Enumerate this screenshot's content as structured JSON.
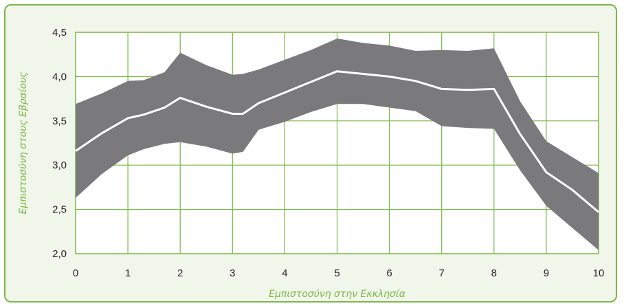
{
  "chart_data": {
    "type": "area",
    "xlabel": "Εμπιστοσύνη στην Εκκλησία",
    "ylabel": "Εμπιστοσύνη στους Εβραίους",
    "xlim": [
      0,
      10
    ],
    "ylim": [
      2.0,
      4.5
    ],
    "x_ticks": [
      "0",
      "1",
      "2",
      "3",
      "4",
      "5",
      "6",
      "7",
      "8",
      "9",
      "10"
    ],
    "y_ticks": [
      "2,0",
      "2,5",
      "3,0",
      "3,5",
      "4,0",
      "4,5"
    ],
    "grid": true,
    "colors": {
      "band": "#7a7a7c",
      "line": "#ffffff",
      "grid": "#7ab648",
      "frame_bg": "#f1f6ea"
    },
    "series": [
      {
        "x": [
          0,
          0.5,
          1,
          1.3,
          1.7,
          2,
          2.5,
          3,
          3.2,
          3.5,
          4,
          4.5,
          5,
          5.5,
          6,
          6.5,
          7,
          7.5,
          8,
          8.5,
          9,
          9.5,
          10
        ],
        "mean": [
          3.16,
          3.36,
          3.53,
          3.57,
          3.65,
          3.76,
          3.66,
          3.58,
          3.58,
          3.7,
          3.82,
          3.94,
          4.06,
          4.03,
          4.0,
          3.95,
          3.86,
          3.85,
          3.86,
          3.35,
          2.92,
          2.72,
          2.47
        ],
        "upper": [
          3.69,
          3.81,
          3.95,
          3.96,
          4.05,
          4.27,
          4.13,
          4.02,
          4.03,
          4.08,
          4.19,
          4.3,
          4.43,
          4.38,
          4.35,
          4.29,
          4.3,
          4.29,
          4.32,
          3.72,
          3.27,
          3.09,
          2.91
        ],
        "lower": [
          2.63,
          2.9,
          3.11,
          3.18,
          3.24,
          3.26,
          3.21,
          3.13,
          3.15,
          3.4,
          3.49,
          3.6,
          3.69,
          3.69,
          3.65,
          3.61,
          3.44,
          3.42,
          3.41,
          2.94,
          2.54,
          2.29,
          2.04
        ]
      }
    ]
  }
}
